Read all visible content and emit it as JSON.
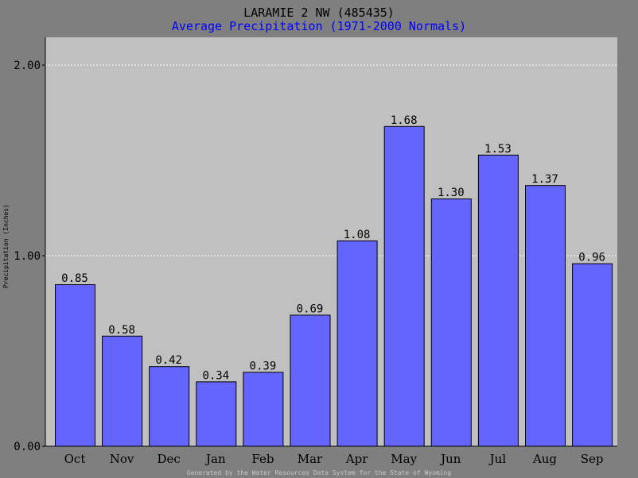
{
  "chart_data": {
    "type": "bar",
    "title": "LARAMIE 2 NW (485435)",
    "subtitle": "Average Precipitation (1971-2000 Normals)",
    "ylabel": "Precipitation (Inches)",
    "xlabel": "",
    "categories": [
      "Oct",
      "Nov",
      "Dec",
      "Jan",
      "Feb",
      "Mar",
      "Apr",
      "May",
      "Jun",
      "Jul",
      "Aug",
      "Sep"
    ],
    "values": [
      0.85,
      0.58,
      0.42,
      0.34,
      0.39,
      0.69,
      1.08,
      1.68,
      1.3,
      1.53,
      1.37,
      0.96
    ],
    "value_labels": [
      "0.85",
      "0.58",
      "0.42",
      "0.34",
      "0.39",
      "0.69",
      "1.08",
      "1.68",
      "1.30",
      "1.53",
      "1.37",
      "0.96"
    ],
    "ylim": [
      0,
      2.0
    ],
    "yticks": [
      0,
      1,
      2
    ],
    "ytick_labels": [
      "0.00",
      "1.00",
      "2.00"
    ],
    "grid": true,
    "legend": "none",
    "footer": "Generated by the Water Resources Data System for the State of Wyoming",
    "colors": {
      "background": "#7f7f7f",
      "plot_area": "#c0c0c0",
      "bar_fill": "#6464ff",
      "bar_stroke": "#000000",
      "title": "#000000",
      "subtitle": "#0000ff",
      "grid": "#ffffff",
      "footer": "#c8c8c8"
    }
  }
}
